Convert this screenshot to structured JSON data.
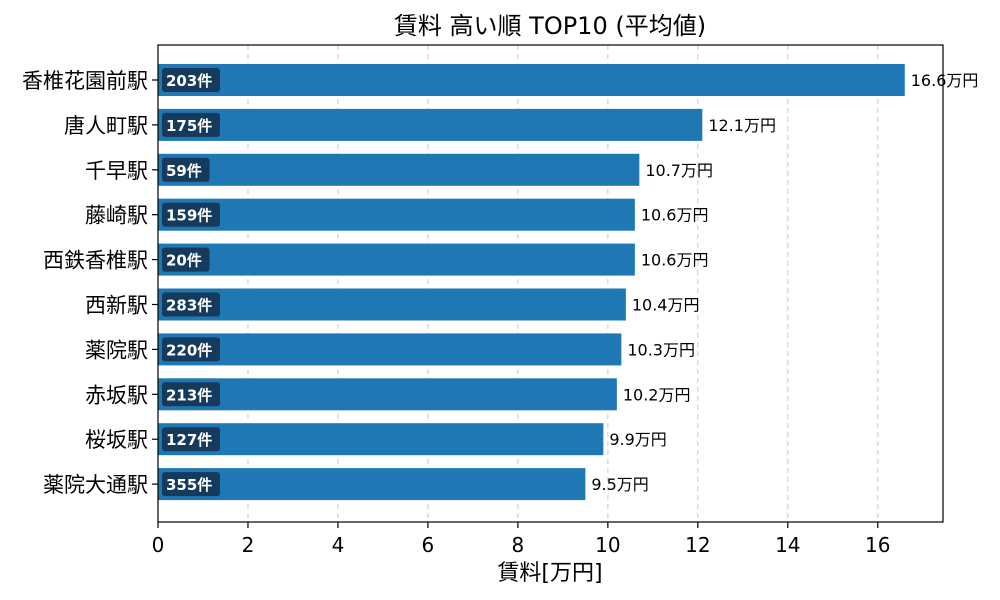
{
  "chart_data": {
    "type": "bar",
    "orientation": "horizontal",
    "title": "賃料 高い順 TOP10 (平均値)",
    "xlabel": "賃料[万円]",
    "ylabel": "",
    "xlim": [
      0,
      17.45
    ],
    "xticks": [
      0,
      2,
      4,
      6,
      8,
      10,
      12,
      14,
      16
    ],
    "grid": "x-dashed",
    "bar_color": "#1f77b4",
    "count_box_color": "#163a5c",
    "categories": [
      "香椎花園前駅",
      "唐人町駅",
      "千早駅",
      "藤崎駅",
      "西鉄香椎駅",
      "西新駅",
      "薬院駅",
      "赤坂駅",
      "桜坂駅",
      "薬院大通駅"
    ],
    "values": [
      16.6,
      12.1,
      10.7,
      10.6,
      10.6,
      10.4,
      10.3,
      10.2,
      9.9,
      9.5
    ],
    "value_labels": [
      "16.6万円",
      "12.1万円",
      "10.7万円",
      "10.6万円",
      "10.6万円",
      "10.4万円",
      "10.3万円",
      "10.2万円",
      "9.9万円",
      "9.5万円"
    ],
    "counts": [
      "203件",
      "175件",
      "59件",
      "159件",
      "20件",
      "283件",
      "220件",
      "213件",
      "127件",
      "355件"
    ]
  }
}
